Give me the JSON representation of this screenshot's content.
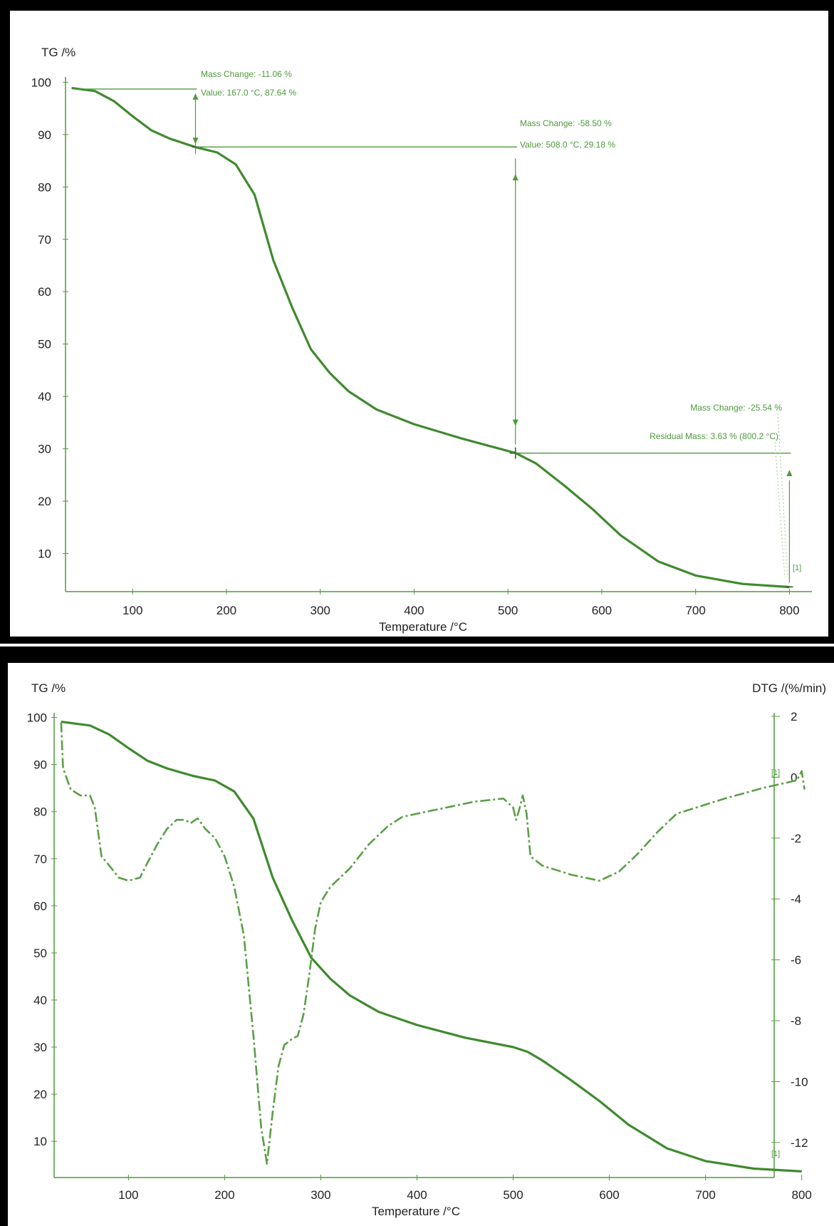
{
  "colors": {
    "tg_curve": "#3f8a2e",
    "dtg_curve": "#5a9e46",
    "axis": "#4e9a3c",
    "annotation": "#4e9a3c",
    "frame": "#000000",
    "text": "#222222"
  },
  "chart_data": [
    {
      "type": "line",
      "xlabel": "Temperature /°C",
      "ylabel": "TG /%",
      "xlim": [
        30,
        805
      ],
      "ylim": [
        3,
        101
      ],
      "xticks": [
        "100",
        "200",
        "300",
        "400",
        "500",
        "600",
        "700",
        "800"
      ],
      "yticks": [
        "10",
        "20",
        "30",
        "40",
        "50",
        "60",
        "70",
        "80",
        "90",
        "100"
      ],
      "grid": false,
      "series": [
        {
          "points": [
            [
              35,
              98.9
            ],
            [
              60,
              98.3
            ],
            [
              80,
              96.4
            ],
            [
              100,
              93.5
            ],
            [
              120,
              90.8
            ],
            [
              140,
              89.2
            ],
            [
              167,
              87.6
            ],
            [
              190,
              86.6
            ],
            [
              210,
              84.3
            ],
            [
              230,
              78.5
            ],
            [
              250,
              66.0
            ],
            [
              270,
              57.0
            ],
            [
              290,
              49.0
            ],
            [
              310,
              44.5
            ],
            [
              330,
              41.0
            ],
            [
              360,
              37.5
            ],
            [
              400,
              34.7
            ],
            [
              450,
              32.0
            ],
            [
              508,
              29.2
            ],
            [
              530,
              27.2
            ],
            [
              560,
              23.0
            ],
            [
              590,
              18.5
            ],
            [
              620,
              13.5
            ],
            [
              660,
              8.5
            ],
            [
              700,
              5.8
            ],
            [
              750,
              4.2
            ],
            [
              800,
              3.6
            ]
          ]
        }
      ],
      "annotations": {
        "step1": {
          "mass_change": "Mass Change: -11.06 %",
          "value": "Value: 167.0 °C, 87.64 %",
          "x": 167,
          "y_top": 98.7,
          "y_bottom": 87.64
        },
        "step2": {
          "mass_change": "Mass Change: -58.50 %",
          "value": "Value: 508.0 °C, 29.18 %",
          "x": 508,
          "y_top": 87.64,
          "y_bottom": 29.18
        },
        "step3": {
          "mass_change": "Mass Change: -25.54 %",
          "residual": "Residual Mass: 3.63 % (800.2 °C)",
          "x": 800,
          "y_top": 29.18,
          "y_bottom": 3.63,
          "index_label": "[1]"
        }
      }
    },
    {
      "type": "line",
      "xlabel": "Temperature /°C",
      "ylabel": "TG /%",
      "y2label": "DTG /(%/min)",
      "xlim": [
        22,
        818
      ],
      "ylim": [
        2,
        101
      ],
      "y2lim": [
        -12.8,
        2
      ],
      "xticks": [
        "100",
        "200",
        "300",
        "400",
        "500",
        "600",
        "700",
        "800"
      ],
      "yticks": [
        "10",
        "20",
        "30",
        "40",
        "50",
        "60",
        "70",
        "80",
        "90",
        "100"
      ],
      "y2ticks": [
        "2",
        "0",
        "-2",
        "-4",
        "-6",
        "-8",
        "-10",
        "-12"
      ],
      "grid": false,
      "index_label_top": "[1]",
      "index_label_bottom": "[1]",
      "series": [
        {
          "axis": "left",
          "style": "solid",
          "points": [
            [
              30,
              99.1
            ],
            [
              60,
              98.3
            ],
            [
              80,
              96.4
            ],
            [
              100,
              93.5
            ],
            [
              120,
              90.8
            ],
            [
              140,
              89.2
            ],
            [
              167,
              87.6
            ],
            [
              190,
              86.6
            ],
            [
              210,
              84.3
            ],
            [
              230,
              78.5
            ],
            [
              250,
              66.0
            ],
            [
              270,
              57.0
            ],
            [
              290,
              49.0
            ],
            [
              310,
              44.5
            ],
            [
              330,
              41.0
            ],
            [
              360,
              37.5
            ],
            [
              400,
              34.7
            ],
            [
              450,
              32.0
            ],
            [
              500,
              30.0
            ],
            [
              515,
              29.0
            ],
            [
              530,
              27.2
            ],
            [
              560,
              23.0
            ],
            [
              590,
              18.5
            ],
            [
              620,
              13.5
            ],
            [
              660,
              8.5
            ],
            [
              700,
              5.8
            ],
            [
              750,
              4.2
            ],
            [
              800,
              3.6
            ]
          ]
        },
        {
          "axis": "right",
          "style": "dashdot",
          "points": [
            [
              30,
              1.8
            ],
            [
              32,
              0.3
            ],
            [
              40,
              -0.4
            ],
            [
              50,
              -0.6
            ],
            [
              60,
              -0.6
            ],
            [
              65,
              -1.0
            ],
            [
              72,
              -2.6
            ],
            [
              80,
              -2.9
            ],
            [
              90,
              -3.3
            ],
            [
              100,
              -3.4
            ],
            [
              112,
              -3.3
            ],
            [
              120,
              -2.8
            ],
            [
              130,
              -2.2
            ],
            [
              140,
              -1.7
            ],
            [
              150,
              -1.4
            ],
            [
              158,
              -1.4
            ],
            [
              165,
              -1.5
            ],
            [
              172,
              -1.35
            ],
            [
              180,
              -1.7
            ],
            [
              190,
              -2.0
            ],
            [
              200,
              -2.6
            ],
            [
              210,
              -3.6
            ],
            [
              220,
              -5.2
            ],
            [
              230,
              -8.5
            ],
            [
              238,
              -11.5
            ],
            [
              244,
              -12.7
            ],
            [
              250,
              -11.0
            ],
            [
              256,
              -9.5
            ],
            [
              262,
              -8.8
            ],
            [
              270,
              -8.6
            ],
            [
              276,
              -8.5
            ],
            [
              282,
              -7.8
            ],
            [
              288,
              -6.5
            ],
            [
              294,
              -5.0
            ],
            [
              300,
              -4.1
            ],
            [
              310,
              -3.6
            ],
            [
              330,
              -3.0
            ],
            [
              350,
              -2.2
            ],
            [
              370,
              -1.6
            ],
            [
              385,
              -1.3
            ],
            [
              400,
              -1.2
            ],
            [
              430,
              -1.0
            ],
            [
              460,
              -0.8
            ],
            [
              490,
              -0.7
            ],
            [
              500,
              -1.0
            ],
            [
              503,
              -1.4
            ],
            [
              506,
              -1.1
            ],
            [
              510,
              -0.6
            ],
            [
              514,
              -1.2
            ],
            [
              518,
              -2.6
            ],
            [
              530,
              -2.9
            ],
            [
              560,
              -3.2
            ],
            [
              590,
              -3.4
            ],
            [
              610,
              -3.1
            ],
            [
              630,
              -2.5
            ],
            [
              650,
              -1.8
            ],
            [
              670,
              -1.2
            ],
            [
              690,
              -1.0
            ],
            [
              720,
              -0.7
            ],
            [
              760,
              -0.35
            ],
            [
              795,
              -0.1
            ],
            [
              800,
              0.2
            ],
            [
              803,
              -0.4
            ]
          ]
        }
      ]
    }
  ]
}
